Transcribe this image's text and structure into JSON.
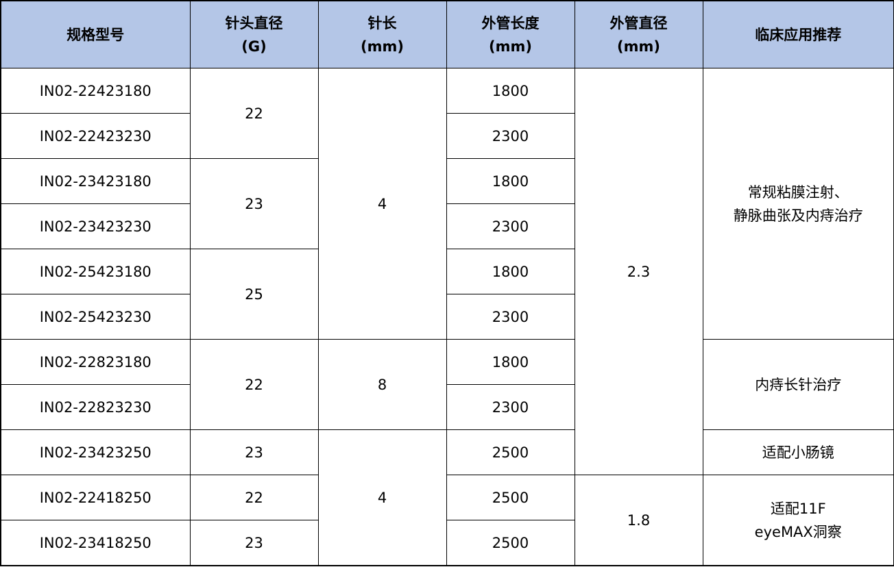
{
  "header_bg": "#b4c6e7",
  "headers": [
    "规格型号",
    "针头直径\n(G)",
    "针长\n(mm)",
    "外管长度\n(mm)",
    "外管直径\n(mm)",
    "临床应用推荐"
  ],
  "models": [
    "IN02-22423180",
    "IN02-22423230",
    "IN02-23423180",
    "IN02-23423230",
    "IN02-25423180",
    "IN02-25423230",
    "IN02-22823180",
    "IN02-22823230",
    "IN02-23423250",
    "IN02-22418250",
    "IN02-23418250"
  ],
  "gauge": [
    "22",
    "23",
    "25",
    "22",
    "23",
    "22",
    "23"
  ],
  "needle_length": [
    "4",
    "8",
    "4"
  ],
  "tube_length": [
    "1800",
    "2300",
    "1800",
    "2300",
    "1800",
    "2300",
    "1800",
    "2300",
    "2500",
    "2500",
    "2500"
  ],
  "tube_diameter": [
    "2.3",
    "1.8"
  ],
  "clinical": [
    "常规粘膜注射、\n静脉曲张及内痔治疗",
    "内痔长针治疗",
    "适配小肠镜",
    "适配11F\neyeMAX洞察"
  ]
}
